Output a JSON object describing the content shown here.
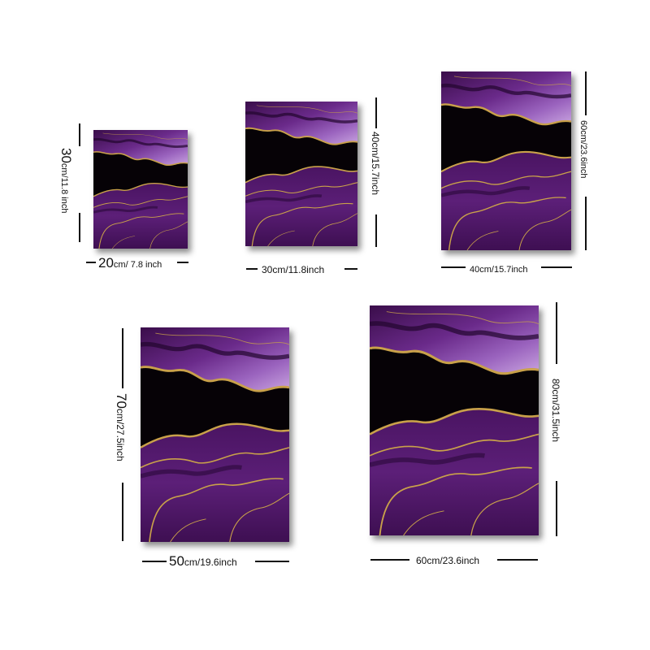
{
  "colors": {
    "black_band": "#060206",
    "deep_purple": "#3a0d4a",
    "mid_purple": "#6a2a8a",
    "lavender": "#b48ad0",
    "gold": "#c9a14a"
  },
  "products": [
    {
      "width_label_num": "20",
      "width_label_unit": "cm/ 7.8 inch",
      "height_label_num": "30",
      "height_label_unit": "cm/11.8 inch"
    },
    {
      "width_label_num": "30cm/11.8inch",
      "width_label_unit": "",
      "height_label_num": "40cm/15.7inch",
      "height_label_unit": ""
    },
    {
      "width_label_num": "40cm/15.7inch",
      "width_label_unit": "",
      "height_label_num": "60cm/23.6inch",
      "height_label_unit": ""
    },
    {
      "width_label_num": "50",
      "width_label_unit": "cm/19.6inch",
      "height_label_num": "70",
      "height_label_unit": "cm/27.5inch"
    },
    {
      "width_label_num": "60cm/23.6inch",
      "width_label_unit": "",
      "height_label_num": "80cm/31.5inch",
      "height_label_unit": ""
    }
  ]
}
